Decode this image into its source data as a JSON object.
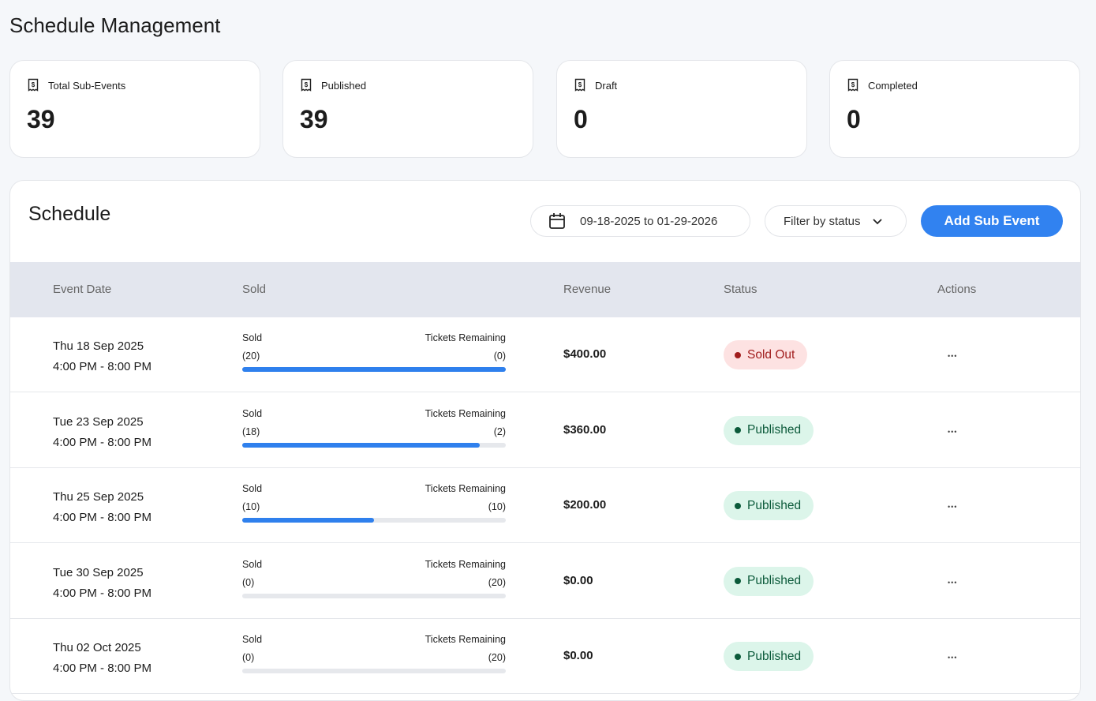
{
  "page_title": "Schedule Management",
  "stats": [
    {
      "label": "Total Sub-Events",
      "value": "39",
      "icon": "receipt-dollar-icon"
    },
    {
      "label": "Published",
      "value": "39",
      "icon": "receipt-dollar-icon"
    },
    {
      "label": "Draft",
      "value": "0",
      "icon": "receipt-dollar-icon"
    },
    {
      "label": "Completed",
      "value": "0",
      "icon": "receipt-dollar-icon"
    }
  ],
  "schedule": {
    "title": "Schedule",
    "date_range": "09-18-2025 to 01-29-2026",
    "filter_label": "Filter by status",
    "add_button": "Add Sub Event",
    "columns": [
      "Event Date",
      "Sold",
      "Revenue",
      "Status",
      "Actions"
    ],
    "sold_label": "Sold",
    "remaining_label": "Tickets Remaining",
    "rows": [
      {
        "date": "Thu 18 Sep 2025",
        "time": "4:00 PM - 8:00 PM",
        "sold": "(20)",
        "remaining": "(0)",
        "sold_fraction": 1.0,
        "revenue": "$400.00",
        "status": "Sold Out"
      },
      {
        "date": "Tue 23 Sep 2025",
        "time": "4:00 PM - 8:00 PM",
        "sold": "(18)",
        "remaining": "(2)",
        "sold_fraction": 0.9,
        "revenue": "$360.00",
        "status": "Published"
      },
      {
        "date": "Thu 25 Sep 2025",
        "time": "4:00 PM - 8:00 PM",
        "sold": "(10)",
        "remaining": "(10)",
        "sold_fraction": 0.5,
        "revenue": "$200.00",
        "status": "Published"
      },
      {
        "date": "Tue 30 Sep 2025",
        "time": "4:00 PM - 8:00 PM",
        "sold": "(0)",
        "remaining": "(20)",
        "sold_fraction": 0,
        "revenue": "$0.00",
        "status": "Published"
      },
      {
        "date": "Thu 02 Oct 2025",
        "time": "4:00 PM - 8:00 PM",
        "sold": "(0)",
        "remaining": "(20)",
        "sold_fraction": 0,
        "revenue": "$0.00",
        "status": "Published"
      }
    ]
  },
  "colors": {
    "accent": "#3182f0",
    "soldout_bg": "#fde2e2",
    "soldout_fg": "#a11d1d",
    "published_bg": "#dcf5ea",
    "published_fg": "#0b5a3a"
  }
}
